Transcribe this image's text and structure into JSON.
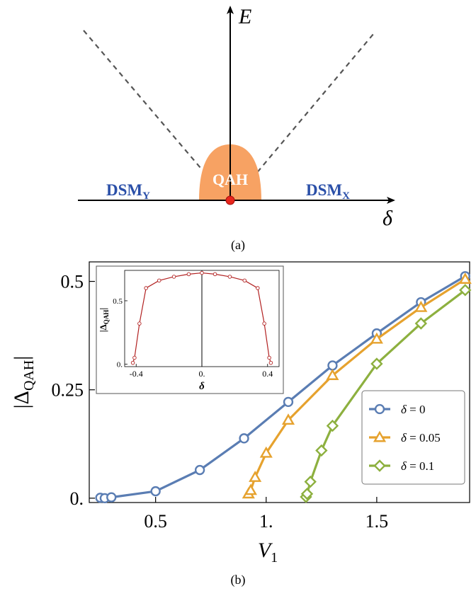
{
  "panel_a": {
    "caption": "(a)",
    "y_axis_label": "E",
    "x_axis_label": "δ",
    "region_center": "QAH",
    "region_left": {
      "main": "DSM",
      "sub": "Y"
    },
    "region_right": {
      "main": "DSM",
      "sub": "X"
    },
    "colors": {
      "dome": "#f7a263",
      "dsm_text": "#2a4fa8",
      "dot": "#e8261c",
      "dashed": "#555555"
    }
  },
  "panel_b": {
    "caption": "(b)",
    "chart_data": {
      "type": "line",
      "xlabel": "V",
      "xlabel_sub": "1",
      "ylabel": "|Δ",
      "ylabel_sub": "QAH",
      "ylabel_close": "|",
      "xlim": [
        0.2,
        1.92
      ],
      "ylim": [
        -0.01,
        0.545
      ],
      "xticks": [
        0.5,
        1.0,
        1.5
      ],
      "xtick_labels": [
        "0.5",
        "1.",
        "1.5"
      ],
      "yticks": [
        0.0,
        0.25,
        0.5
      ],
      "ytick_labels": [
        "0.",
        "0.25",
        "0.5"
      ],
      "legend_position": "bottom-right",
      "series": [
        {
          "name_symbol": "δ",
          "name_value": " = 0",
          "marker": "circle",
          "color": "#5a7db3",
          "x": [
            0.25,
            0.27,
            0.3,
            0.5,
            0.7,
            0.9,
            1.1,
            1.3,
            1.5,
            1.7,
            1.9
          ],
          "y": [
            0.001,
            0.0,
            0.002,
            0.016,
            0.065,
            0.138,
            0.222,
            0.306,
            0.38,
            0.452,
            0.512
          ]
        },
        {
          "name_symbol": "δ",
          "name_value": " = 0.05",
          "marker": "triangle",
          "color": "#e6a22e",
          "x": [
            0.92,
            0.93,
            0.95,
            1.0,
            1.1,
            1.3,
            1.5,
            1.7,
            1.9
          ],
          "y": [
            0.01,
            0.018,
            0.048,
            0.104,
            0.18,
            0.283,
            0.367,
            0.44,
            0.505
          ]
        },
        {
          "name_symbol": "δ",
          "name_value": " = 0.1",
          "marker": "diamond",
          "color": "#8db03f",
          "x": [
            1.18,
            1.185,
            1.2,
            1.25,
            1.3,
            1.5,
            1.7,
            1.9
          ],
          "y": [
            0.003,
            0.01,
            0.038,
            0.11,
            0.167,
            0.31,
            0.403,
            0.48
          ]
        }
      ],
      "inset": {
        "type": "line",
        "xlabel": "δ",
        "ylabel": "|Δ",
        "ylabel_sub": "QAH",
        "ylabel_close": "|",
        "xlim": [
          -0.47,
          0.47
        ],
        "ylim": [
          -0.02,
          0.74
        ],
        "xticks": [
          -0.4,
          0.0,
          0.4
        ],
        "xtick_labels": [
          "-0.4",
          "0.",
          "0.4"
        ],
        "yticks": [
          0.0,
          0.5
        ],
        "ytick_labels": [
          "0.",
          "0.5"
        ],
        "color": "#b22222",
        "x": [
          -0.42,
          -0.41,
          -0.38,
          -0.34,
          -0.26,
          -0.17,
          -0.08,
          0.0,
          0.08,
          0.17,
          0.26,
          0.34,
          0.38,
          0.41,
          0.42
        ],
        "y": [
          0.01,
          0.05,
          0.32,
          0.6,
          0.66,
          0.69,
          0.71,
          0.72,
          0.71,
          0.69,
          0.66,
          0.6,
          0.32,
          0.05,
          0.01
        ]
      }
    }
  }
}
